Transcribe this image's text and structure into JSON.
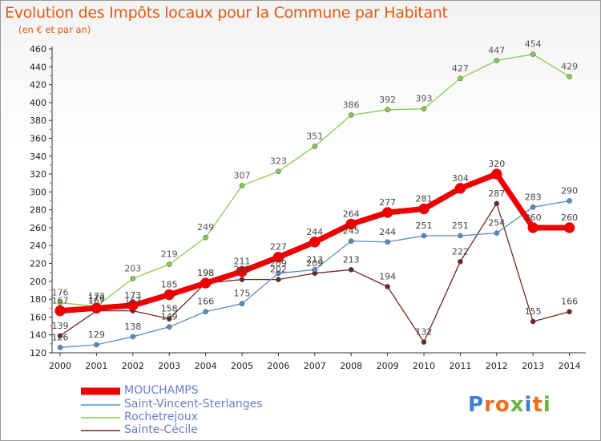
{
  "title": "Evolution des Impôts locaux pour la Commune par Habitant",
  "subtitle": "(en € et par an)",
  "logo_text": "Proxiti",
  "chart_data": {
    "type": "line",
    "x": [
      2000,
      2001,
      2002,
      2003,
      2004,
      2005,
      2006,
      2007,
      2008,
      2009,
      2010,
      2011,
      2012,
      2013,
      2014
    ],
    "ylim": [
      120,
      460
    ],
    "yticks": [
      120,
      140,
      160,
      180,
      200,
      220,
      240,
      260,
      280,
      300,
      320,
      340,
      360,
      380,
      400,
      420,
      440,
      460
    ],
    "grid": false,
    "legend_position": "bottom",
    "series": [
      {
        "name": "MOUCHAMPS",
        "color": "#ee0000",
        "values": [
          167,
          170,
          173,
          185,
          198,
          211,
          227,
          244,
          264,
          277,
          281,
          304,
          320,
          260,
          260
        ]
      },
      {
        "name": "Saint-Vincent-Sterlanges",
        "color": "#5b8ec0",
        "values": [
          126,
          129,
          138,
          149,
          166,
          175,
          209,
          213,
          245,
          244,
          251,
          251,
          254,
          283,
          290
        ]
      },
      {
        "name": "Rochetrejoux",
        "color": "#88cc55",
        "values": [
          176,
          172,
          203,
          219,
          249,
          307,
          323,
          351,
          386,
          392,
          393,
          427,
          447,
          454,
          429
        ]
      },
      {
        "name": "Sainte-Cécile",
        "color": "#6e2828",
        "values": [
          139,
          167,
          167,
          158,
          198,
          202,
          202,
          209,
          213,
          194,
          132,
          222,
          287,
          155,
          166
        ]
      }
    ]
  }
}
